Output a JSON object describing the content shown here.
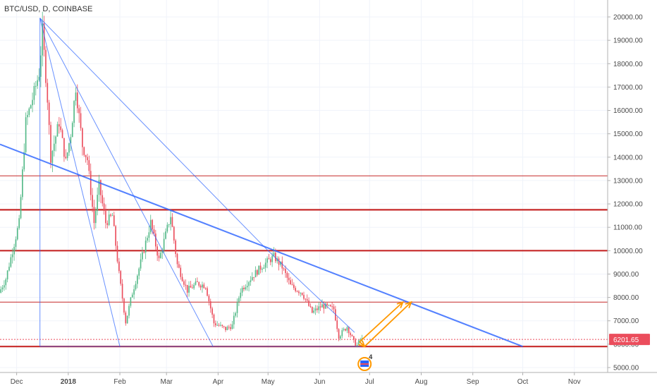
{
  "chart_data": {
    "type": "candlestick",
    "title": "BTC/USD, D, COINBASE",
    "ylim": [
      4850,
      20550
    ],
    "y_ticks": [
      5000,
      6000,
      7000,
      8000,
      9000,
      10000,
      11000,
      12000,
      13000,
      14000,
      15000,
      16000,
      17000,
      18000,
      19000,
      20000
    ],
    "y_tick_labels": [
      "5000.00",
      "6000.00",
      "7000.00",
      "8000.00",
      "9000.00",
      "10000.00",
      "11000.00",
      "12000.00",
      "13000.00",
      "14000.00",
      "15000.00",
      "16000.00",
      "17000.00",
      "18000.00",
      "19000.00",
      "20000.00"
    ],
    "xlim": [
      "2017-11-21",
      "2018-11-21"
    ],
    "x_ticks": [
      {
        "date": "2017-12-01",
        "label": "Dec"
      },
      {
        "date": "2018-01-01",
        "label": "2018"
      },
      {
        "date": "2018-02-01",
        "label": "Feb"
      },
      {
        "date": "2018-03-01",
        "label": "Mar"
      },
      {
        "date": "2018-04-01",
        "label": "Apr"
      },
      {
        "date": "2018-05-01",
        "label": "May"
      },
      {
        "date": "2018-06-01",
        "label": "Jun"
      },
      {
        "date": "2018-07-01",
        "label": "Jul"
      },
      {
        "date": "2018-08-01",
        "label": "Aug"
      },
      {
        "date": "2018-09-01",
        "label": "Sep"
      },
      {
        "date": "2018-10-01",
        "label": "Oct"
      },
      {
        "date": "2018-11-01",
        "label": "Nov"
      }
    ],
    "last_price": 6201.65,
    "last_price_label": "6201.65",
    "partial_label": "6000.00",
    "event_badge": "4",
    "colors": {
      "up": "#53b987",
      "down": "#eb4d5c",
      "level_line": "#c62828",
      "trendline": "#2962ff",
      "arrow": "#ff9800",
      "price_tag": "#eb4d5c"
    },
    "price_path": [
      [
        "2017-11-21",
        8200
      ],
      [
        "2017-11-25",
        8800
      ],
      [
        "2017-11-29",
        10000
      ],
      [
        "2017-12-03",
        11200
      ],
      [
        "2017-12-07",
        15500
      ],
      [
        "2017-12-11",
        16500
      ],
      [
        "2017-12-15",
        17600
      ],
      [
        "2017-12-17",
        19400
      ],
      [
        "2017-12-20",
        16500
      ],
      [
        "2017-12-22",
        14000
      ],
      [
        "2017-12-27",
        15500
      ],
      [
        "2017-12-31",
        13800
      ],
      [
        "2018-01-03",
        15000
      ],
      [
        "2018-01-06",
        17000
      ],
      [
        "2018-01-10",
        14500
      ],
      [
        "2018-01-13",
        13900
      ],
      [
        "2018-01-17",
        11200
      ],
      [
        "2018-01-20",
        12800
      ],
      [
        "2018-01-24",
        11200
      ],
      [
        "2018-01-28",
        11500
      ],
      [
        "2018-02-01",
        9000
      ],
      [
        "2018-02-05",
        6950
      ],
      [
        "2018-02-09",
        8200
      ],
      [
        "2018-02-14",
        9500
      ],
      [
        "2018-02-20",
        11200
      ],
      [
        "2018-02-25",
        9600
      ],
      [
        "2018-03-04",
        11500
      ],
      [
        "2018-03-08",
        9400
      ],
      [
        "2018-03-14",
        8300
      ],
      [
        "2018-03-20",
        8600
      ],
      [
        "2018-03-25",
        8500
      ],
      [
        "2018-03-30",
        6900
      ],
      [
        "2018-04-06",
        6650
      ],
      [
        "2018-04-10",
        6800
      ],
      [
        "2018-04-15",
        8300
      ],
      [
        "2018-04-22",
        8900
      ],
      [
        "2018-04-28",
        9350
      ],
      [
        "2018-05-05",
        9750
      ],
      [
        "2018-05-10",
        9300
      ],
      [
        "2018-05-15",
        8500
      ],
      [
        "2018-05-22",
        8200
      ],
      [
        "2018-05-28",
        7350
      ],
      [
        "2018-06-03",
        7650
      ],
      [
        "2018-06-10",
        7500
      ],
      [
        "2018-06-13",
        6350
      ],
      [
        "2018-06-18",
        6750
      ],
      [
        "2018-06-22",
        6100
      ],
      [
        "2018-06-24",
        5950
      ],
      [
        "2018-06-26",
        6201.65
      ]
    ],
    "horizontal_levels": [
      {
        "price": 13200,
        "style": "thin"
      },
      {
        "price": 11750,
        "style": "thick"
      },
      {
        "price": 10000,
        "style": "thick"
      },
      {
        "price": 7800,
        "style": "thin"
      },
      {
        "price": 6201.65,
        "style": "dotted"
      },
      {
        "price": 5900,
        "style": "thick"
      }
    ],
    "trendlines": [
      {
        "from": [
          "2017-12-15",
          19950
        ],
        "to": [
          "2018-03-29",
          5900
        ],
        "width": 1
      },
      {
        "from": [
          "2017-12-15",
          19950
        ],
        "to": [
          "2018-05-01",
          10000
        ],
        "width": 1
      },
      {
        "from": [
          "2018-05-01",
          10000
        ],
        "to": [
          "2018-06-22",
          6500
        ],
        "width": 1
      },
      {
        "from": [
          "2017-12-15",
          19950
        ],
        "to": [
          "2018-02-01",
          5900
        ],
        "width": 1
      },
      {
        "from": [
          "2017-11-21",
          14550
        ],
        "to": [
          "2018-10-01",
          5900
        ],
        "width": 2
      },
      {
        "from": [
          "2017-12-15",
          19950
        ],
        "to": [
          "2017-12-15",
          5900
        ],
        "width": 1
      },
      {
        "from": [
          "2017-12-15",
          5900
        ],
        "to": [
          "2018-06-26",
          5900
        ],
        "width": 1
      }
    ],
    "projection_arrows": [
      {
        "from": [
          "2018-06-25",
          6100
        ],
        "to": [
          "2018-07-21",
          7800
        ]
      },
      {
        "from": [
          "2018-06-28",
          5900
        ],
        "to": [
          "2018-07-26",
          7800
        ]
      },
      {
        "from": [
          "2018-06-25",
          6100
        ],
        "to": [
          "2018-06-28",
          5900
        ]
      }
    ]
  }
}
